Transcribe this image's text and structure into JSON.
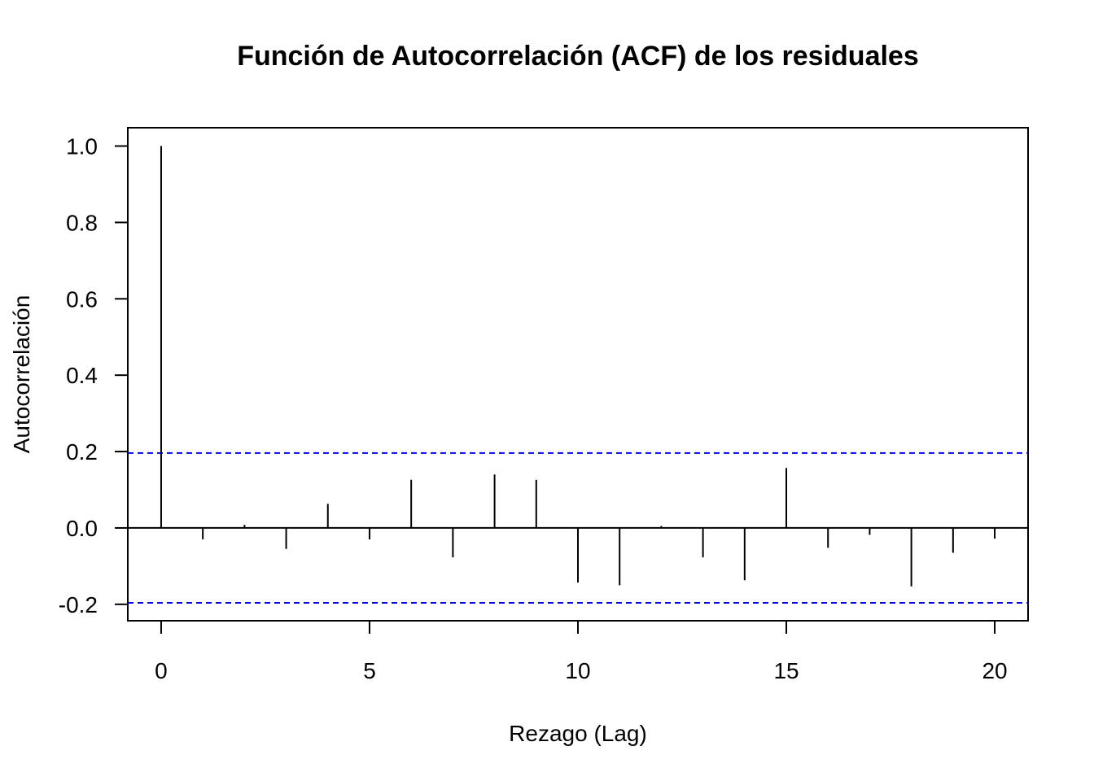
{
  "chart_data": {
    "type": "bar",
    "title": "Función de Autocorrelación (ACF) de los residuales",
    "xlabel": "Rezago (Lag)",
    "ylabel": "Autocorrelación",
    "x": [
      0,
      1,
      2,
      3,
      4,
      5,
      6,
      7,
      8,
      9,
      10,
      11,
      12,
      13,
      14,
      15,
      16,
      17,
      18,
      19,
      20
    ],
    "values": [
      1.0,
      -0.03,
      0.008,
      -0.055,
      0.063,
      -0.03,
      0.126,
      -0.077,
      0.14,
      0.126,
      -0.143,
      -0.15,
      0.005,
      -0.077,
      -0.137,
      0.157,
      -0.052,
      -0.018,
      -0.153,
      -0.065,
      -0.028
    ],
    "confidence_bounds": [
      0.196,
      -0.196
    ],
    "xlim": [
      -0.8,
      20.8
    ],
    "ylim": [
      -0.243,
      1.048
    ],
    "xticks": [
      0,
      5,
      10,
      15,
      20
    ],
    "xtick_labels": [
      "0",
      "5",
      "10",
      "15",
      "20"
    ],
    "yticks": [
      -0.2,
      0.0,
      0.2,
      0.4,
      0.6,
      0.8,
      1.0
    ],
    "ytick_labels": [
      "-0.2",
      "0.0",
      "0.2",
      "0.4",
      "0.6",
      "0.8",
      "1.0"
    ],
    "grid": false,
    "colors": {
      "bars": "#000000",
      "bounds": "#0000ff"
    }
  }
}
